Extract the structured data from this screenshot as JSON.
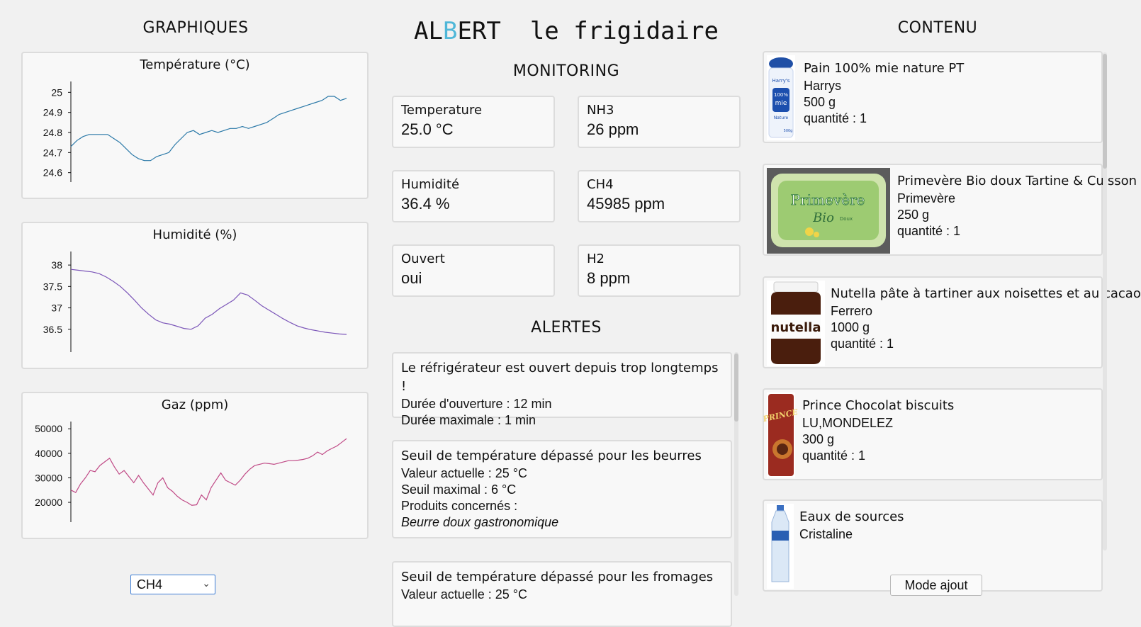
{
  "graphs": {
    "title": "GRAPHIQUES",
    "selected_gas": "CH4"
  },
  "chart_data": [
    {
      "type": "line",
      "title": "Température (°C)",
      "yticks": [
        24.6,
        24.7,
        24.8,
        24.9,
        25.0
      ],
      "ytick_labels": [
        "24.6",
        "24.7",
        "24.8",
        "24.9",
        "25"
      ],
      "ylim": [
        24.56,
        25.04
      ],
      "color": "#2b79a8",
      "values": [
        24.73,
        24.76,
        24.78,
        24.79,
        24.79,
        24.79,
        24.79,
        24.77,
        24.75,
        24.72,
        24.69,
        24.67,
        24.66,
        24.66,
        24.68,
        24.69,
        24.7,
        24.74,
        24.77,
        24.8,
        24.81,
        24.79,
        24.8,
        24.81,
        24.8,
        24.81,
        24.82,
        24.82,
        24.83,
        24.82,
        24.83,
        24.84,
        24.85,
        24.87,
        24.89,
        24.9,
        24.91,
        24.92,
        24.93,
        24.94,
        24.95,
        24.96,
        24.98,
        24.98,
        24.96,
        24.97
      ]
    },
    {
      "type": "line",
      "title": "Humidité (%)",
      "yticks": [
        36.5,
        37,
        37.5,
        38
      ],
      "ytick_labels": [
        "36.5",
        "37",
        "37.5",
        "38"
      ],
      "ylim": [
        36.0,
        38.25
      ],
      "color": "#7b55b8",
      "values": [
        37.9,
        37.88,
        37.86,
        37.84,
        37.8,
        37.72,
        37.62,
        37.5,
        37.35,
        37.18,
        37.0,
        36.85,
        36.72,
        36.65,
        36.62,
        36.57,
        36.52,
        36.5,
        36.58,
        36.76,
        36.85,
        36.98,
        37.08,
        37.18,
        37.35,
        37.3,
        37.18,
        37.05,
        36.95,
        36.85,
        36.75,
        36.66,
        36.58,
        36.53,
        36.49,
        36.46,
        36.43,
        36.41,
        36.39,
        36.38
      ]
    },
    {
      "type": "line",
      "title": "Gaz (ppm)",
      "yticks": [
        20000,
        30000,
        40000,
        50000
      ],
      "ytick_labels": [
        "20000",
        "30000",
        "40000",
        "50000"
      ],
      "ylim": [
        12500,
        51800
      ],
      "color": "#c04a86",
      "values": [
        25000,
        24000,
        27500,
        30000,
        33000,
        32500,
        35000,
        36500,
        38000,
        34500,
        31500,
        33000,
        30500,
        28000,
        31000,
        28000,
        25500,
        23000,
        28000,
        30000,
        26000,
        24500,
        22500,
        21000,
        20000,
        18800,
        19000,
        23000,
        21000,
        26000,
        29000,
        32000,
        29000,
        28000,
        27000,
        29000,
        31500,
        33500,
        35000,
        35500,
        36000,
        35800,
        35500,
        36000,
        36500,
        37000,
        37000,
        37200,
        37500,
        38000,
        39000,
        40500,
        39500,
        41000,
        42000,
        43000,
        44500,
        46000
      ]
    }
  ],
  "header": {
    "app_title": "ALBERT  le frigidaire",
    "monitoring_title": "MONITORING",
    "alerts_title": "ALERTES"
  },
  "metrics": [
    {
      "label": "Temperature",
      "value": "25.0 °C"
    },
    {
      "label": "NH3",
      "value": "26 ppm"
    },
    {
      "label": "Humidité",
      "value": "36.4 %"
    },
    {
      "label": "CH4",
      "value": "45985 ppm"
    },
    {
      "label": "Ouvert",
      "value": "oui"
    },
    {
      "label": "H2",
      "value": "8 ppm"
    }
  ],
  "alerts": [
    {
      "title": "Le réfrigérateur est ouvert depuis trop longtemps !",
      "lines": [
        "Durée d'ouverture : 12 min",
        "Durée maximale : 1 min"
      ]
    },
    {
      "title": "Seuil de température dépassé pour les beurres",
      "lines": [
        "Valeur actuelle : 25 °C",
        "Seuil maximal : 6 °C",
        "Produits concernés :"
      ],
      "italic": "Beurre doux gastronomique"
    },
    {
      "title": "Seuil de température dépassé pour les fromages",
      "lines": [
        "Valeur actuelle : 25 °C"
      ]
    }
  ],
  "content": {
    "title": "CONTENU",
    "add_mode_label": "Mode ajout",
    "products": [
      {
        "name": "Pain 100% mie nature PT",
        "brand": "Harrys",
        "weight": "500 g",
        "quantity": "quantité : 1",
        "logo_text": [
          "Harry's",
          "100%",
          "mie",
          "Nature",
          "500g"
        ]
      },
      {
        "name": "Primevère Bio doux Tartine & Cuisson",
        "brand": "Primevère",
        "weight": "250 g",
        "quantity": "quantité : 1",
        "logo_text": [
          "Primevère",
          "Bio",
          "Doux"
        ]
      },
      {
        "name": "Nutella pâte à tartiner aux noisettes et au cacao",
        "brand": "Ferrero",
        "weight": "1000 g",
        "quantity": "quantité : 1",
        "logo_text": [
          "nutella"
        ]
      },
      {
        "name": "Prince Chocolat biscuits",
        "brand": "LU,MONDELEZ",
        "weight": "300 g",
        "quantity": "quantité : 1",
        "logo_text": [
          "PRINCE"
        ]
      },
      {
        "name": "Eaux de sources",
        "brand": "Cristaline",
        "weight": "",
        "quantity": "",
        "logo_text": []
      }
    ]
  }
}
